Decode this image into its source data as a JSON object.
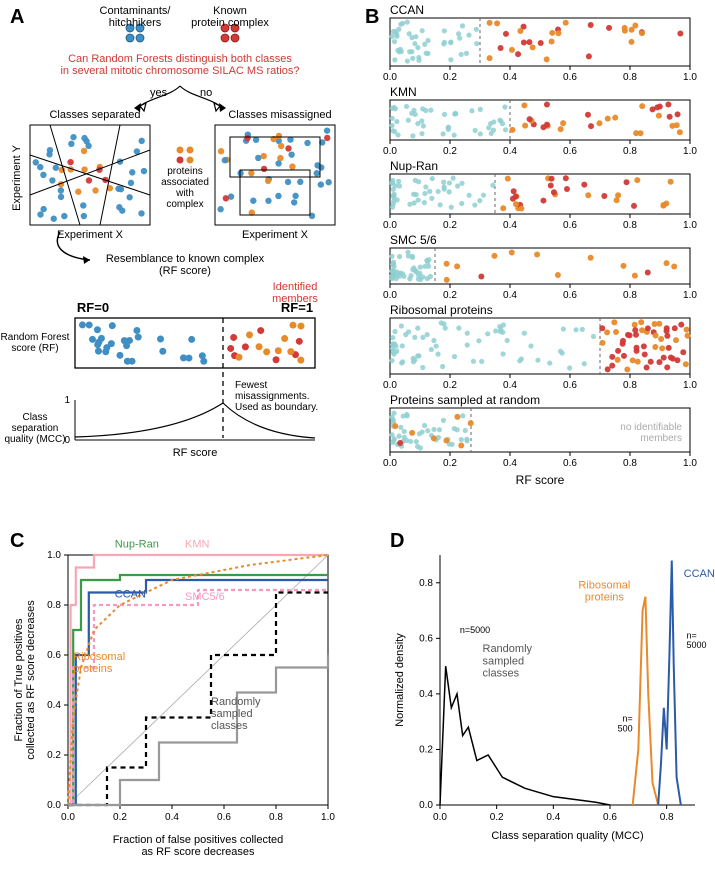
{
  "labels": {
    "A": "A",
    "B": "B",
    "C": "C",
    "D": "D"
  },
  "panelA": {
    "contaminants": "Contaminants/\nhitchhikers",
    "known": "Known\nprotein complex",
    "question": "Can Random Forests distinguish both classes\nin several mitotic chromosome SILAC MS ratios?",
    "yes": "yes",
    "no": "no",
    "sep_title": "Classes separated",
    "mis_title": "Classes misassigned",
    "assoc_text": "proteins\nassociated\nwith\ncomplex",
    "axis_x": "Experiment X",
    "axis_y": "Experiment Y",
    "resemblance": "Resemblance to known complex\n(RF score)",
    "identified": "Identified\nmembers",
    "rf0": "RF=0",
    "rf1": "RF=1",
    "rf_label": "Random Forest\nscore (RF)",
    "mcc_label": "Class\nseparation\nquality (MCC)",
    "rfscore": "RF score",
    "fewest": "Fewest\nmisassignments.\nUsed as boundary."
  },
  "panelB": {
    "strips": [
      {
        "title": "CCAN",
        "thresh": 0.3
      },
      {
        "title": "KMN",
        "thresh": 0.4
      },
      {
        "title": "Nup-Ran",
        "thresh": 0.35
      },
      {
        "title": "SMC 5/6",
        "thresh": 0.15
      },
      {
        "title": "Ribosomal proteins",
        "thresh": 0.7
      },
      {
        "title": "Proteins sampled at random",
        "thresh": 0.27,
        "note": "no identifiable\nmembers"
      }
    ],
    "xlabel": "RF score",
    "ticks": [
      "0.0",
      "0.2",
      "0.4",
      "0.6",
      "0.8",
      "1.0"
    ],
    "tickvals": [
      0,
      0.2,
      0.4,
      0.6,
      0.8,
      1.0
    ]
  },
  "panelC": {
    "xlabel": "Fraction of false positives collected\nas RF score decreases",
    "ylabel": "Fraction of True positives\ncollected as RF score decreases",
    "ticks": [
      "0.0",
      "0.2",
      "0.4",
      "0.6",
      "0.8",
      "1.0"
    ],
    "legend": {
      "KMN": "KMN",
      "NupRan": "Nup-Ran",
      "CCAN": "CCAN",
      "SMC": "SMC5/6",
      "Ribo": "Ribosomal\nproteins",
      "Random": "Randomly\nsampled\nclasses"
    },
    "colors": {
      "KMN": "#f7a7b4",
      "NupRan": "#3a9a47",
      "CCAN": "#2b5aa8",
      "SMC": "#f49ac1",
      "Ribo": "#e88a2a",
      "Random1": "#000000",
      "Random2": "#999999"
    }
  },
  "panelD": {
    "xlabel": "Class separation quality (MCC)",
    "ylabel": "Normalized density",
    "yticks": [
      "0.0",
      "0.2",
      "0.4",
      "0.6",
      "0.8"
    ],
    "ytickvals": [
      0,
      0.2,
      0.4,
      0.6,
      0.8
    ],
    "xticks": [
      "0.0",
      "0.2",
      "0.4",
      "0.6",
      "0.8"
    ],
    "xtickvals": [
      0,
      0.2,
      0.4,
      0.6,
      0.8
    ],
    "randlabel": "Randomly\nsampled\nclasses",
    "ribo": "Ribosomal\nproteins",
    "ccan": "CCAN",
    "n500": "n=\n500",
    "n5000a": "n=5000",
    "n5000b": "n=\n5000",
    "colors": {
      "rand": "#000000",
      "ribo": "#e88a2a",
      "ccan": "#2b5aa8"
    }
  },
  "colors": {
    "blue": "#3f8fc4",
    "red": "#d13a36",
    "orange": "#e88a2a",
    "teal": "#8fcfd1",
    "lightgray": "#cccccc"
  }
}
